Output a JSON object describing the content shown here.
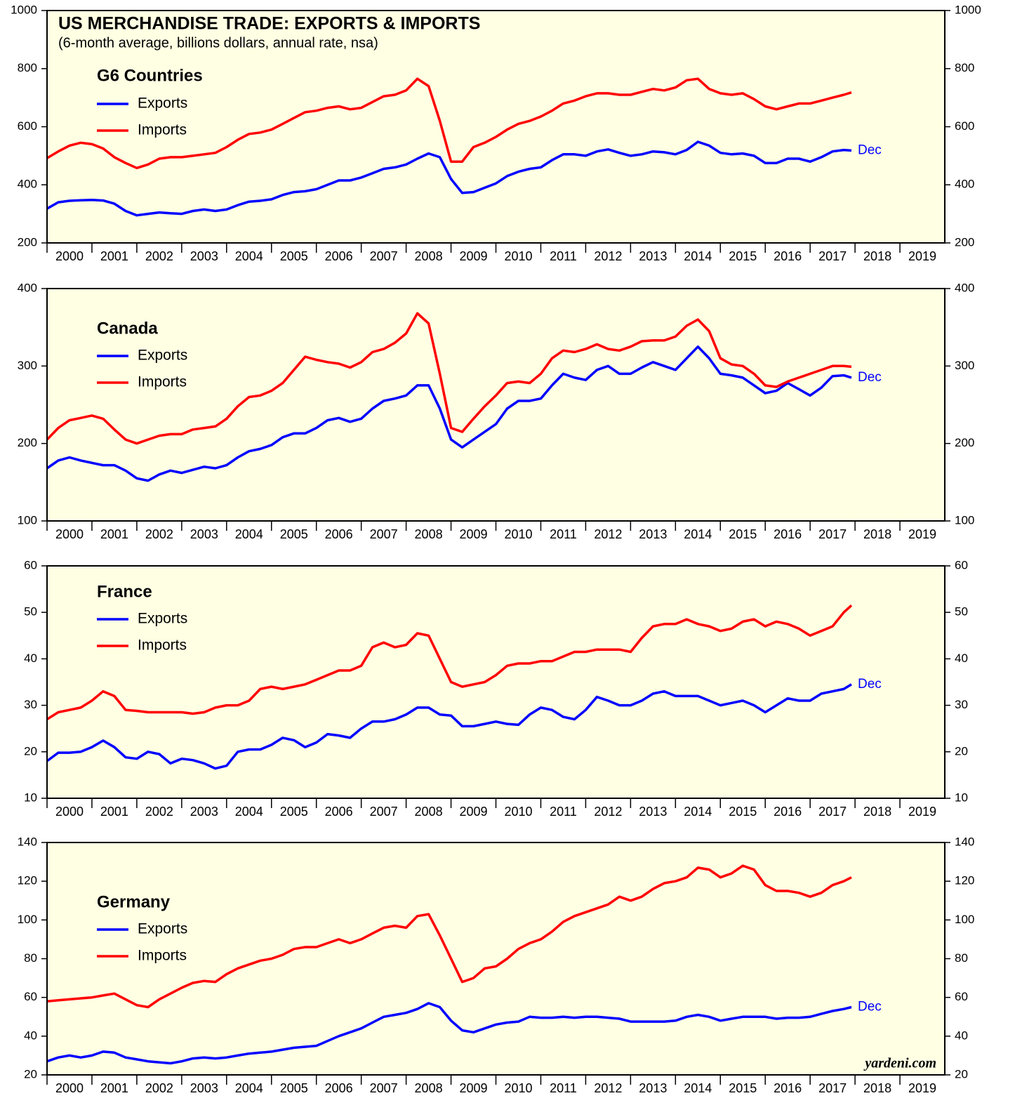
{
  "chart_data": [
    {
      "type": "line",
      "title": "US MERCHANDISE TRADE: EXPORTS & IMPORTS",
      "subtitle": "(6-month average, billions dollars, annual rate, nsa)",
      "panel_title": "G6 Countries",
      "annotation": "Dec",
      "x": [
        2000,
        2000.25,
        2000.5,
        2000.75,
        2001,
        2001.25,
        2001.5,
        2001.75,
        2002,
        2002.25,
        2002.5,
        2002.75,
        2003,
        2003.25,
        2003.5,
        2003.75,
        2004,
        2004.25,
        2004.5,
        2004.75,
        2005,
        2005.25,
        2005.5,
        2005.75,
        2006,
        2006.25,
        2006.5,
        2006.75,
        2007,
        2007.25,
        2007.5,
        2007.75,
        2008,
        2008.25,
        2008.5,
        2008.75,
        2009,
        2009.25,
        2009.5,
        2009.75,
        2010,
        2010.25,
        2010.5,
        2010.75,
        2011,
        2011.25,
        2011.5,
        2011.75,
        2012,
        2012.25,
        2012.5,
        2012.75,
        2013,
        2013.25,
        2013.5,
        2013.75,
        2014,
        2014.25,
        2014.5,
        2014.75,
        2015,
        2015.25,
        2015.5,
        2015.75,
        2016,
        2016.25,
        2016.5,
        2016.75,
        2017,
        2017.25,
        2017.5,
        2017.75,
        2017.92
      ],
      "series": [
        {
          "name": "Exports",
          "color": "#0000ff",
          "values": [
            318,
            340,
            345,
            347,
            348,
            346,
            335,
            310,
            295,
            300,
            305,
            302,
            300,
            310,
            315,
            310,
            315,
            330,
            342,
            345,
            350,
            365,
            375,
            378,
            385,
            400,
            415,
            415,
            425,
            440,
            455,
            460,
            470,
            490,
            508,
            495,
            420,
            372,
            375,
            390,
            405,
            430,
            445,
            455,
            460,
            485,
            505,
            505,
            500,
            515,
            522,
            510,
            500,
            505,
            515,
            512,
            505,
            520,
            548,
            535,
            510,
            505,
            508,
            500,
            475,
            475,
            490,
            490,
            480,
            495,
            515,
            520,
            518
          ]
        },
        {
          "name": "Imports",
          "color": "#ff0000",
          "values": [
            492,
            515,
            535,
            545,
            540,
            525,
            495,
            475,
            458,
            470,
            490,
            495,
            495,
            500,
            505,
            510,
            530,
            555,
            575,
            580,
            590,
            610,
            630,
            650,
            655,
            665,
            670,
            660,
            665,
            685,
            705,
            710,
            725,
            765,
            740,
            620,
            480,
            480,
            530,
            545,
            565,
            590,
            610,
            620,
            635,
            655,
            680,
            690,
            705,
            715,
            715,
            710,
            710,
            720,
            730,
            725,
            735,
            760,
            765,
            730,
            715,
            710,
            715,
            695,
            670,
            660,
            670,
            680,
            680,
            690,
            700,
            710,
            718
          ]
        }
      ],
      "xlim": [
        2000,
        2020
      ],
      "xticks": [
        2000,
        2001,
        2002,
        2003,
        2004,
        2005,
        2006,
        2007,
        2008,
        2009,
        2010,
        2011,
        2012,
        2013,
        2014,
        2015,
        2016,
        2017,
        2018,
        2019
      ],
      "ylim": [
        200,
        1000
      ],
      "yticks": [
        200,
        400,
        600,
        800,
        1000
      ]
    },
    {
      "type": "line",
      "panel_title": "Canada",
      "annotation": "Dec",
      "x": [
        2000,
        2000.25,
        2000.5,
        2000.75,
        2001,
        2001.25,
        2001.5,
        2001.75,
        2002,
        2002.25,
        2002.5,
        2002.75,
        2003,
        2003.25,
        2003.5,
        2003.75,
        2004,
        2004.25,
        2004.5,
        2004.75,
        2005,
        2005.25,
        2005.5,
        2005.75,
        2006,
        2006.25,
        2006.5,
        2006.75,
        2007,
        2007.25,
        2007.5,
        2007.75,
        2008,
        2008.25,
        2008.5,
        2008.75,
        2009,
        2009.25,
        2009.5,
        2009.75,
        2010,
        2010.25,
        2010.5,
        2010.75,
        2011,
        2011.25,
        2011.5,
        2011.75,
        2012,
        2012.25,
        2012.5,
        2012.75,
        2013,
        2013.25,
        2013.5,
        2013.75,
        2014,
        2014.25,
        2014.5,
        2014.75,
        2015,
        2015.25,
        2015.5,
        2015.75,
        2016,
        2016.25,
        2016.5,
        2016.75,
        2017,
        2017.25,
        2017.5,
        2017.75,
        2017.92
      ],
      "series": [
        {
          "name": "Exports",
          "color": "#0000ff",
          "values": [
            168,
            178,
            182,
            178,
            175,
            172,
            172,
            165,
            155,
            152,
            160,
            165,
            162,
            166,
            170,
            168,
            172,
            182,
            190,
            193,
            198,
            208,
            213,
            213,
            220,
            230,
            233,
            228,
            232,
            245,
            255,
            258,
            262,
            275,
            275,
            245,
            205,
            195,
            205,
            215,
            225,
            245,
            255,
            255,
            258,
            275,
            290,
            285,
            282,
            295,
            300,
            290,
            290,
            298,
            305,
            300,
            295,
            310,
            325,
            310,
            290,
            288,
            285,
            275,
            265,
            268,
            278,
            270,
            262,
            272,
            287,
            288,
            285
          ]
        },
        {
          "name": "Imports",
          "color": "#ff0000",
          "values": [
            205,
            220,
            230,
            233,
            236,
            232,
            218,
            205,
            200,
            205,
            210,
            212,
            212,
            218,
            220,
            222,
            232,
            248,
            260,
            262,
            268,
            278,
            295,
            312,
            308,
            305,
            303,
            298,
            305,
            318,
            322,
            330,
            342,
            368,
            355,
            290,
            220,
            215,
            232,
            248,
            262,
            278,
            280,
            278,
            290,
            310,
            320,
            318,
            322,
            328,
            322,
            320,
            325,
            332,
            333,
            333,
            338,
            352,
            360,
            345,
            310,
            302,
            300,
            290,
            275,
            273,
            280,
            285,
            290,
            295,
            300,
            300,
            299
          ]
        }
      ],
      "xlim": [
        2000,
        2020
      ],
      "xticks": [
        2000,
        2001,
        2002,
        2003,
        2004,
        2005,
        2006,
        2007,
        2008,
        2009,
        2010,
        2011,
        2012,
        2013,
        2014,
        2015,
        2016,
        2017,
        2018,
        2019
      ],
      "ylim": [
        100,
        400
      ],
      "yticks": [
        100,
        200,
        300,
        400
      ]
    },
    {
      "type": "line",
      "panel_title": "France",
      "annotation": "Dec",
      "x": [
        2000,
        2000.25,
        2000.5,
        2000.75,
        2001,
        2001.25,
        2001.5,
        2001.75,
        2002,
        2002.25,
        2002.5,
        2002.75,
        2003,
        2003.25,
        2003.5,
        2003.75,
        2004,
        2004.25,
        2004.5,
        2004.75,
        2005,
        2005.25,
        2005.5,
        2005.75,
        2006,
        2006.25,
        2006.5,
        2006.75,
        2007,
        2007.25,
        2007.5,
        2007.75,
        2008,
        2008.25,
        2008.5,
        2008.75,
        2009,
        2009.25,
        2009.5,
        2009.75,
        2010,
        2010.25,
        2010.5,
        2010.75,
        2011,
        2011.25,
        2011.5,
        2011.75,
        2012,
        2012.25,
        2012.5,
        2012.75,
        2013,
        2013.25,
        2013.5,
        2013.75,
        2014,
        2014.25,
        2014.5,
        2014.75,
        2015,
        2015.25,
        2015.5,
        2015.75,
        2016,
        2016.25,
        2016.5,
        2016.75,
        2017,
        2017.25,
        2017.5,
        2017.75,
        2017.92
      ],
      "series": [
        {
          "name": "Exports",
          "color": "#0000ff",
          "values": [
            18,
            19.8,
            19.8,
            20,
            21,
            22.4,
            21,
            18.8,
            18.5,
            20,
            19.5,
            17.5,
            18.5,
            18.2,
            17.5,
            16.4,
            17,
            20,
            20.5,
            20.5,
            21.5,
            23,
            22.5,
            21,
            22,
            23.8,
            23.5,
            23,
            25,
            26.5,
            26.5,
            27,
            28,
            29.5,
            29.5,
            28,
            27.8,
            25.5,
            25.5,
            26,
            26.5,
            26,
            25.8,
            28,
            29.5,
            29,
            27.5,
            27,
            29,
            31.8,
            31,
            30,
            30,
            31,
            32.5,
            33,
            32,
            32,
            32,
            31,
            30,
            30.5,
            31,
            30,
            28.5,
            30,
            31.5,
            31,
            31,
            32.5,
            33,
            33.5,
            34.5
          ]
        },
        {
          "name": "Imports",
          "color": "#ff0000",
          "values": [
            27,
            28.5,
            29,
            29.5,
            31,
            33,
            32,
            29,
            28.8,
            28.5,
            28.5,
            28.5,
            28.5,
            28.2,
            28.5,
            29.5,
            30,
            30,
            31,
            33.5,
            34,
            33.5,
            34,
            34.5,
            35.5,
            36.5,
            37.5,
            37.5,
            38.5,
            42.5,
            43.5,
            42.5,
            43,
            45.5,
            45,
            40,
            35,
            34,
            34.5,
            35,
            36.5,
            38.5,
            39,
            39,
            39.5,
            39.5,
            40.5,
            41.5,
            41.5,
            42,
            42,
            42,
            41.5,
            44.5,
            47,
            47.5,
            47.5,
            48.5,
            47.5,
            47,
            46,
            46.5,
            48,
            48.5,
            47,
            48,
            47.5,
            46.5,
            45,
            46,
            47,
            50,
            51.5
          ]
        }
      ],
      "xlim": [
        2000,
        2020
      ],
      "xticks": [
        2000,
        2001,
        2002,
        2003,
        2004,
        2005,
        2006,
        2007,
        2008,
        2009,
        2010,
        2011,
        2012,
        2013,
        2014,
        2015,
        2016,
        2017,
        2018,
        2019
      ],
      "ylim": [
        10,
        60
      ],
      "yticks": [
        10,
        20,
        30,
        40,
        50,
        60
      ]
    },
    {
      "type": "line",
      "panel_title": "Germany",
      "annotation": "Dec",
      "source": "yardeni.com",
      "x": [
        2000,
        2000.25,
        2000.5,
        2000.75,
        2001,
        2001.25,
        2001.5,
        2001.75,
        2002,
        2002.25,
        2002.5,
        2002.75,
        2003,
        2003.25,
        2003.5,
        2003.75,
        2004,
        2004.25,
        2004.5,
        2004.75,
        2005,
        2005.25,
        2005.5,
        2005.75,
        2006,
        2006.25,
        2006.5,
        2006.75,
        2007,
        2007.25,
        2007.5,
        2007.75,
        2008,
        2008.25,
        2008.5,
        2008.75,
        2009,
        2009.25,
        2009.5,
        2009.75,
        2010,
        2010.25,
        2010.5,
        2010.75,
        2011,
        2011.25,
        2011.5,
        2011.75,
        2012,
        2012.25,
        2012.5,
        2012.75,
        2013,
        2013.25,
        2013.5,
        2013.75,
        2014,
        2014.25,
        2014.5,
        2014.75,
        2015,
        2015.25,
        2015.5,
        2015.75,
        2016,
        2016.25,
        2016.5,
        2016.75,
        2017,
        2017.25,
        2017.5,
        2017.75,
        2017.92
      ],
      "series": [
        {
          "name": "Exports",
          "color": "#0000ff",
          "values": [
            27,
            29,
            30,
            29,
            30,
            32,
            31.5,
            29,
            28,
            27,
            26.5,
            26,
            27,
            28.5,
            29,
            28.5,
            29,
            30,
            31,
            31.5,
            32,
            33,
            34,
            34.5,
            35,
            37.5,
            40,
            42,
            44,
            47,
            50,
            51,
            52,
            54,
            57,
            55,
            48,
            43,
            42,
            44,
            46,
            47,
            47.5,
            50,
            49.5,
            49.5,
            50,
            49.5,
            50,
            50,
            49.5,
            49,
            47.5,
            47.5,
            47.5,
            47.5,
            48,
            50,
            51,
            50,
            48,
            49,
            50,
            50,
            50,
            49,
            49.5,
            49.5,
            50,
            51.5,
            53,
            54,
            55
          ]
        },
        {
          "name": "Imports",
          "color": "#ff0000",
          "values": [
            58,
            58.5,
            59,
            59.5,
            60,
            61,
            62,
            59,
            56,
            55,
            59,
            62,
            65,
            67.5,
            68.5,
            68,
            72,
            75,
            77,
            79,
            80,
            82,
            85,
            86,
            86,
            88,
            90,
            88,
            90,
            93,
            96,
            97,
            96,
            102,
            103,
            92,
            80,
            68,
            70,
            75,
            76,
            80,
            85,
            88,
            90,
            94,
            99,
            102,
            104,
            106,
            108,
            112,
            110,
            112,
            116,
            119,
            120,
            122,
            127,
            126,
            122,
            124,
            128,
            126,
            118,
            115,
            115,
            114,
            112,
            114,
            118,
            120,
            122
          ]
        }
      ],
      "xlim": [
        2000,
        2020
      ],
      "xticks": [
        2000,
        2001,
        2002,
        2003,
        2004,
        2005,
        2006,
        2007,
        2008,
        2009,
        2010,
        2011,
        2012,
        2013,
        2014,
        2015,
        2016,
        2017,
        2018,
        2019
      ],
      "ylim": [
        20,
        140
      ],
      "yticks": [
        20,
        40,
        60,
        80,
        100,
        120,
        140
      ]
    }
  ]
}
